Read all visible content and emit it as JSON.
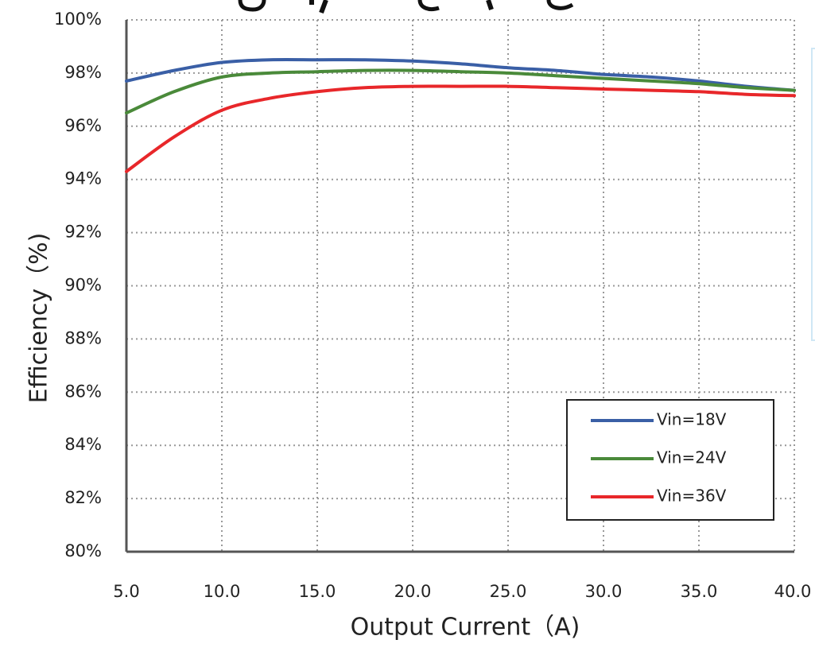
{
  "chart_data": {
    "type": "line",
    "title": "",
    "xlabel": "Output Current（A)",
    "ylabel": "Efficiency（%)",
    "xlim": [
      5.0,
      40.0
    ],
    "ylim": [
      80,
      100
    ],
    "x_ticks": [
      "5.0",
      "10.0",
      "15.0",
      "20.0",
      "25.0",
      "30.0",
      "35.0",
      "40.0"
    ],
    "y_ticks": [
      "80%",
      "82%",
      "84%",
      "86%",
      "88%",
      "90%",
      "92%",
      "94%",
      "96%",
      "98%",
      "100%"
    ],
    "grid": true,
    "legend_position": "bottom-right",
    "series": [
      {
        "name": "Vin=18V",
        "color": "#3a5fa6",
        "x": [
          5.0,
          7.5,
          10.0,
          12.5,
          15.0,
          17.5,
          20.0,
          22.5,
          25.0,
          27.5,
          30.0,
          32.5,
          35.0,
          37.5,
          40.0
        ],
        "y": [
          97.7,
          98.1,
          98.4,
          98.5,
          98.5,
          98.5,
          98.45,
          98.35,
          98.2,
          98.1,
          97.95,
          97.85,
          97.7,
          97.5,
          97.35
        ]
      },
      {
        "name": "Vin=24V",
        "color": "#4a8a3a",
        "x": [
          5.0,
          7.5,
          10.0,
          12.5,
          15.0,
          17.5,
          20.0,
          22.5,
          25.0,
          27.5,
          30.0,
          32.5,
          35.0,
          37.5,
          40.0
        ],
        "y": [
          96.5,
          97.3,
          97.85,
          98.0,
          98.05,
          98.1,
          98.1,
          98.05,
          98.0,
          97.9,
          97.8,
          97.7,
          97.6,
          97.45,
          97.35
        ]
      },
      {
        "name": "Vin=36V",
        "color": "#e8272a",
        "x": [
          5.0,
          7.5,
          10.0,
          12.5,
          15.0,
          17.5,
          20.0,
          22.5,
          25.0,
          27.5,
          30.0,
          32.5,
          35.0,
          37.5,
          40.0
        ],
        "y": [
          94.3,
          95.6,
          96.6,
          97.05,
          97.3,
          97.45,
          97.5,
          97.5,
          97.5,
          97.45,
          97.4,
          97.35,
          97.3,
          97.2,
          97.15
        ]
      }
    ]
  }
}
